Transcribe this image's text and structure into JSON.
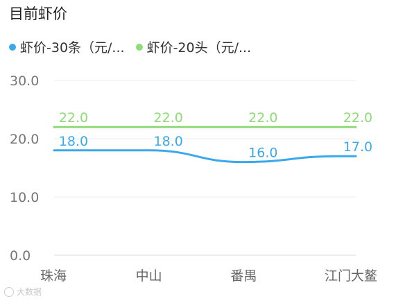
{
  "title": "目前虾价",
  "footer_text": "大数据",
  "chart_data": {
    "type": "line",
    "categories": [
      "珠海",
      "中山",
      "番禺",
      "江门大鳌"
    ],
    "series": [
      {
        "name": "虾价-30条（元/...",
        "color": "#3aa8ec",
        "values": [
          18.0,
          18.0,
          16.0,
          17.0
        ],
        "labels": [
          "18.0",
          "18.0",
          "16.0",
          "17.0"
        ]
      },
      {
        "name": "虾价-20头（元/...",
        "color": "#8edb78",
        "values": [
          22.0,
          22.0,
          22.0,
          22.0
        ],
        "labels": [
          "22.0",
          "22.0",
          "22.0",
          "22.0"
        ]
      }
    ],
    "yticks": [
      "30.0",
      "20.0",
      "10.0",
      "0.0"
    ],
    "ylim": [
      0,
      30
    ],
    "grid": true,
    "legend_position": "top-left",
    "smooth": true
  }
}
